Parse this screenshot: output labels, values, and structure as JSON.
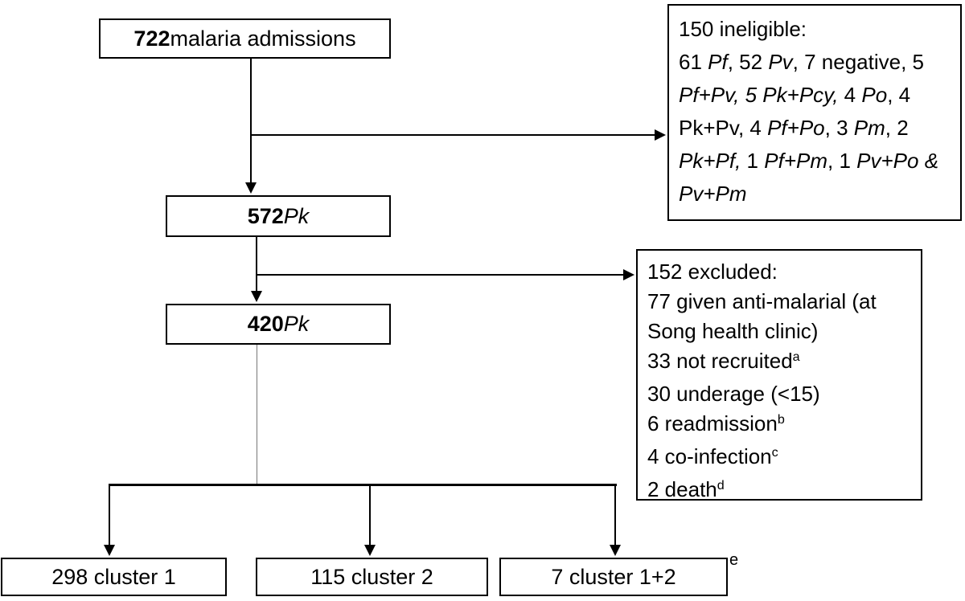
{
  "title": "Study flow diagram of malaria admissions",
  "colors": {
    "ink": "#000000",
    "box_border": "#000000",
    "thin_connector": "#777777"
  },
  "boxes": {
    "admissions": {
      "segments": [
        {
          "t": "722",
          "b": true
        },
        {
          "t": " malaria admissions"
        }
      ]
    },
    "ineligible": {
      "lines": [
        [
          {
            "t": "150 ineligible:"
          }
        ],
        [
          {
            "t": "61 "
          },
          {
            "t": "Pf",
            "i": true
          },
          {
            "t": ", 52 "
          },
          {
            "t": "Pv",
            "i": true
          },
          {
            "t": ", 7 negative, 5"
          }
        ],
        [
          {
            "t": "Pf+Pv, 5 Pk+Pcy,",
            "i": true
          },
          {
            "t": " 4 "
          },
          {
            "t": "Po",
            "i": true
          },
          {
            "t": ", 4"
          }
        ],
        [
          {
            "t": "Pk+Pv, 4 "
          },
          {
            "t": "Pf+Po",
            "i": true
          },
          {
            "t": ", 3 "
          },
          {
            "t": "Pm",
            "i": true
          },
          {
            "t": ", 2"
          }
        ],
        [
          {
            "t": "Pk+Pf,",
            "i": true
          },
          {
            "t": " 1 "
          },
          {
            "t": "Pf+Pm",
            "i": true
          },
          {
            "t": ", 1 "
          },
          {
            "t": "Pv+Po &",
            "i": true
          }
        ],
        [
          {
            "t": "Pv+Pm",
            "i": true
          }
        ]
      ]
    },
    "pk572": {
      "segments": [
        {
          "t": "572",
          "b": true
        },
        {
          "t": " "
        },
        {
          "t": "Pk",
          "i": true
        }
      ]
    },
    "excluded": {
      "lines": [
        [
          {
            "t": "152 excluded:"
          }
        ],
        [
          {
            "t": "77 given anti-malarial (at"
          }
        ],
        [
          {
            "t": "Song health clinic)"
          }
        ],
        [
          {
            "t": "33 not recruited"
          },
          {
            "t": "a",
            "sup": true
          }
        ],
        [
          {
            "t": "30 underage (<15)"
          }
        ],
        [
          {
            "t": "6 readmission"
          },
          {
            "t": "b",
            "sup": true
          }
        ],
        [
          {
            "t": "4 co-infection"
          },
          {
            "t": "c",
            "sup": true
          }
        ],
        [
          {
            "t": "2 death"
          },
          {
            "t": "d",
            "sup": true
          }
        ]
      ]
    },
    "pk420": {
      "segments": [
        {
          "t": "420",
          "b": true
        },
        {
          "t": " "
        },
        {
          "t": "Pk",
          "i": true
        }
      ]
    },
    "cluster1": {
      "segments": [
        {
          "t": "298 cluster 1"
        }
      ]
    },
    "cluster2": {
      "segments": [
        {
          "t": "115 cluster 2"
        }
      ]
    },
    "cluster12": {
      "segments": [
        {
          "t": "7 cluster 1+2"
        }
      ]
    },
    "cluster12_footnote": "e"
  }
}
